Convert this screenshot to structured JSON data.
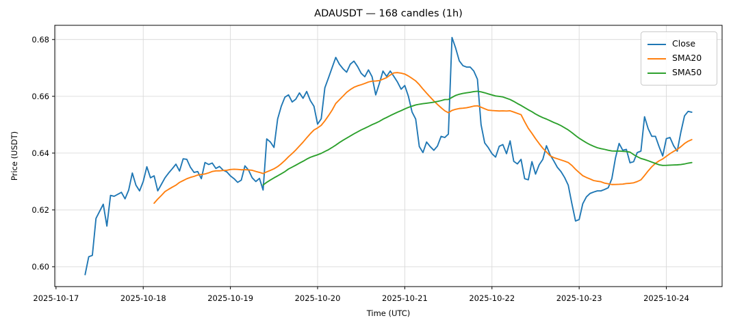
{
  "figure": {
    "title": "ADAUSDT — 168 candles (1h)",
    "xlabel": "Time (UTC)",
    "ylabel": "Price (USDT)",
    "background": "#ffffff"
  },
  "axes": {
    "grid": true,
    "grid_color": "#d9d9d9",
    "spine_color": "#000000",
    "yticks": [
      0.6,
      0.62,
      0.64,
      0.66,
      0.68
    ],
    "ytick_labels": [
      "0.60",
      "0.62",
      "0.64",
      "0.66",
      "0.68"
    ],
    "xtick_labels": [
      "2025-10-17",
      "2025-10-18",
      "2025-10-19",
      "2025-10-20",
      "2025-10-21",
      "2025-10-22",
      "2025-10-23",
      "2025-10-24"
    ]
  },
  "legend": {
    "position": "upper right",
    "entries": [
      {
        "label": "Close",
        "color": "#1f77b4"
      },
      {
        "label": "SMA20",
        "color": "#ff7f0e"
      },
      {
        "label": "SMA50",
        "color": "#2ca02c"
      }
    ]
  },
  "chart_data": {
    "type": "line",
    "title": "ADAUSDT — 168 candles (1h)",
    "xlabel": "Time (UTC)",
    "ylabel": "Price (USDT)",
    "symbol": "ADAUSDT",
    "candle_count": 168,
    "interval": "1h",
    "x_start": "2025-10-17 08:00",
    "x_end": "2025-10-24 07:00",
    "ylim": [
      0.593,
      0.685
    ],
    "xtick_dates": [
      "2025-10-17",
      "2025-10-18",
      "2025-10-19",
      "2025-10-20",
      "2025-10-21",
      "2025-10-22",
      "2025-10-23",
      "2025-10-24"
    ],
    "series": [
      {
        "name": "Close",
        "color": "#1f77b4",
        "source": "close"
      },
      {
        "name": "SMA20",
        "color": "#ff7f0e",
        "source": "sma",
        "window": 20
      },
      {
        "name": "SMA50",
        "color": "#2ca02c",
        "source": "sma",
        "window": 50
      }
    ],
    "close": [
      0.5972,
      0.6035,
      0.604,
      0.617,
      0.6195,
      0.622,
      0.6143,
      0.6251,
      0.6248,
      0.6255,
      0.6262,
      0.6239,
      0.627,
      0.633,
      0.6287,
      0.6267,
      0.63,
      0.6352,
      0.6313,
      0.632,
      0.6267,
      0.629,
      0.6313,
      0.633,
      0.6345,
      0.6361,
      0.6337,
      0.638,
      0.6378,
      0.635,
      0.6332,
      0.6335,
      0.631,
      0.6367,
      0.636,
      0.6365,
      0.6346,
      0.6353,
      0.634,
      0.6334,
      0.632,
      0.631,
      0.6297,
      0.6305,
      0.6355,
      0.634,
      0.6313,
      0.63,
      0.6311,
      0.627,
      0.645,
      0.6439,
      0.642,
      0.652,
      0.6565,
      0.6597,
      0.6605,
      0.658,
      0.659,
      0.6612,
      0.6593,
      0.6617,
      0.6585,
      0.6565,
      0.6502,
      0.6521,
      0.663,
      0.6665,
      0.6701,
      0.6737,
      0.6713,
      0.6697,
      0.6685,
      0.6713,
      0.6724,
      0.6705,
      0.6681,
      0.6669,
      0.6693,
      0.6669,
      0.6605,
      0.6645,
      0.6689,
      0.667,
      0.6689,
      0.667,
      0.665,
      0.6625,
      0.6638,
      0.66,
      0.6545,
      0.652,
      0.6423,
      0.6402,
      0.6439,
      0.6423,
      0.641,
      0.6425,
      0.6459,
      0.6455,
      0.6467,
      0.6807,
      0.677,
      0.6725,
      0.6708,
      0.6703,
      0.6703,
      0.6689,
      0.666,
      0.65,
      0.6436,
      0.6419,
      0.6398,
      0.6386,
      0.6424,
      0.643,
      0.6398,
      0.6443,
      0.6371,
      0.6362,
      0.6378,
      0.631,
      0.6306,
      0.637,
      0.6326,
      0.6359,
      0.6378,
      0.6426,
      0.6394,
      0.6373,
      0.635,
      0.6335,
      0.6314,
      0.6287,
      0.6222,
      0.6161,
      0.6166,
      0.6222,
      0.6246,
      0.6258,
      0.6263,
      0.6267,
      0.6267,
      0.6272,
      0.6278,
      0.631,
      0.6383,
      0.6434,
      0.641,
      0.6413,
      0.6366,
      0.637,
      0.6402,
      0.6407,
      0.6528,
      0.6486,
      0.6459,
      0.6459,
      0.6423,
      0.639,
      0.6451,
      0.6455,
      0.6426,
      0.6407,
      0.6474,
      0.6531,
      0.6547,
      0.6544
    ]
  }
}
